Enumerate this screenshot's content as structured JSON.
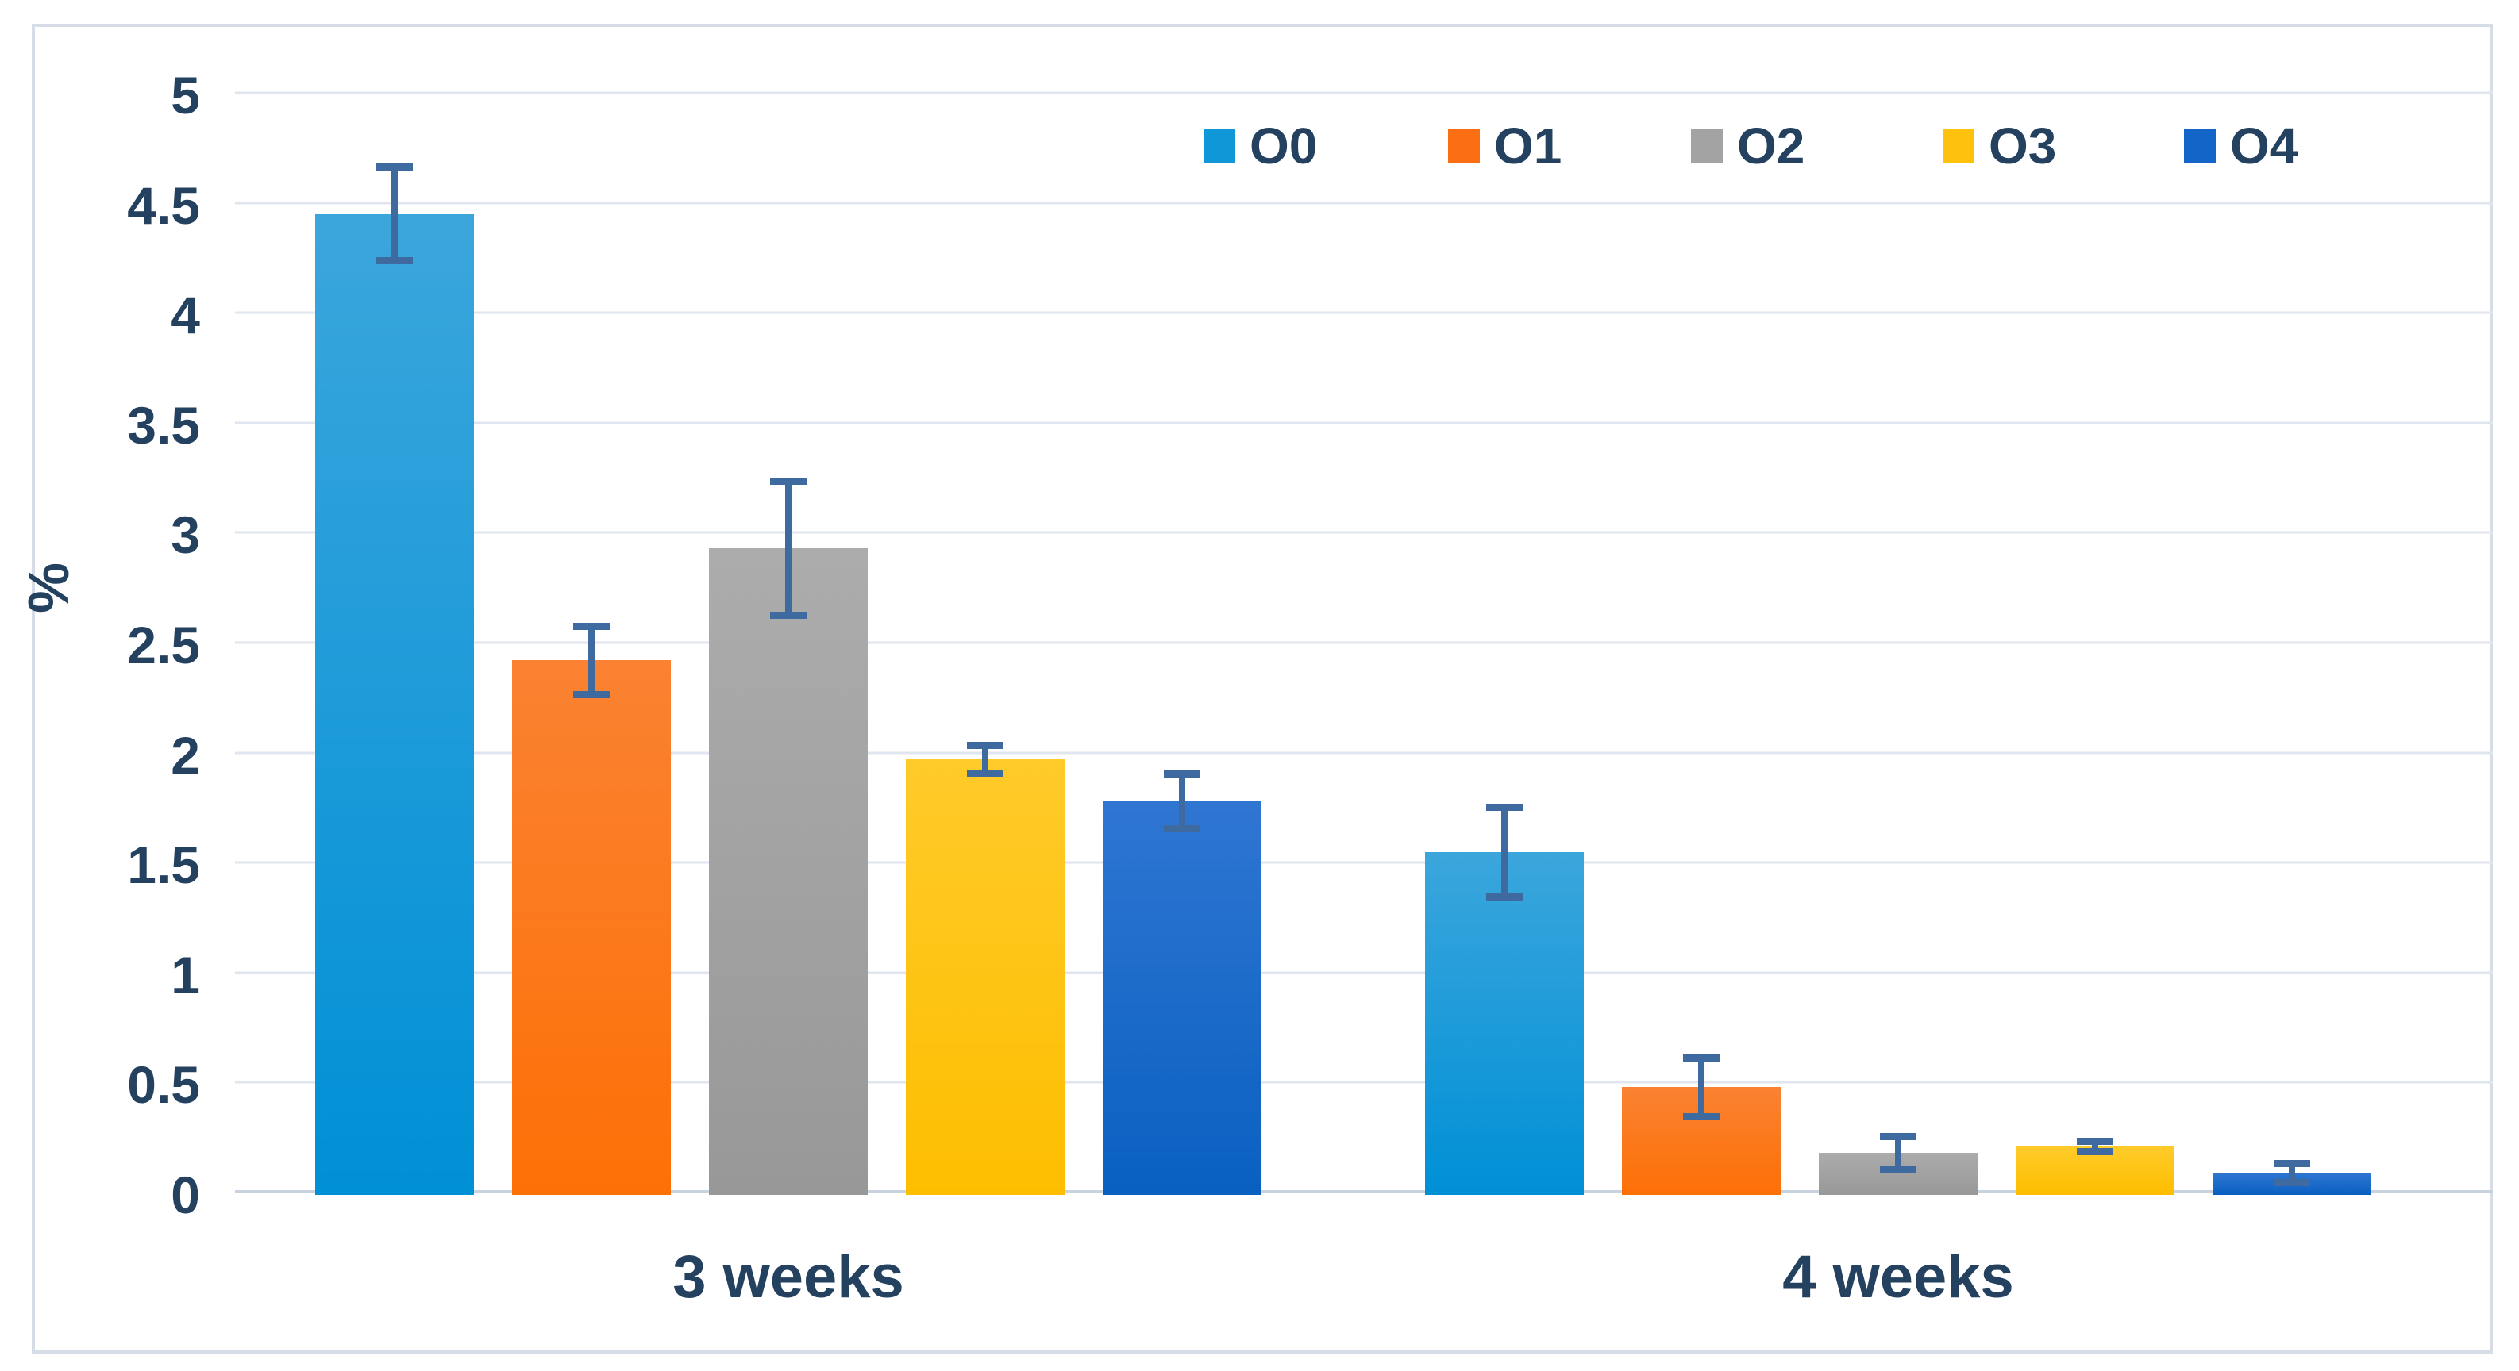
{
  "chart_data": {
    "type": "bar",
    "title": "",
    "categories": [
      "3 weeks",
      "4 weeks"
    ],
    "series": [
      {
        "name": "O0",
        "values": [
          4.46,
          1.56
        ],
        "errors": [
          0.23,
          0.22
        ],
        "color": "#0f97d7",
        "gradient": [
          "#3ba6dc",
          "#0090d6"
        ]
      },
      {
        "name": "O1",
        "values": [
          2.43,
          0.49
        ],
        "errors": [
          0.17,
          0.15
        ],
        "color": "#fb6e14",
        "gradient": [
          "#fa8232",
          "#fd7006"
        ]
      },
      {
        "name": "O2",
        "values": [
          2.94,
          0.19
        ],
        "errors": [
          0.32,
          0.09
        ],
        "color": "#a3a3a3",
        "gradient": [
          "#acacac",
          "#989898"
        ]
      },
      {
        "name": "O3",
        "values": [
          1.98,
          0.22
        ],
        "errors": [
          0.08,
          0.04
        ],
        "color": "#fec10d",
        "gradient": [
          "#ffcb2a",
          "#febe00"
        ]
      },
      {
        "name": "O4",
        "values": [
          1.79,
          0.1
        ],
        "errors": [
          0.14,
          0.06
        ],
        "color": "#1465c8",
        "gradient": [
          "#2f76d2",
          "#0960c1"
        ]
      }
    ],
    "xlabel": "",
    "ylabel": "%",
    "ylim": [
      0,
      5
    ],
    "ytick_step": 0.5,
    "ytick_labels": [
      "0",
      "0.5",
      "1",
      "1.5",
      "2",
      "2.5",
      "3",
      "3.5",
      "4",
      "4.5",
      "5"
    ],
    "grid": "horizontal",
    "legend_position": "top-right",
    "error_bar_color": "#3e6a9f",
    "text_color": "#24415f",
    "gridline_color": "#e0e6ef"
  }
}
